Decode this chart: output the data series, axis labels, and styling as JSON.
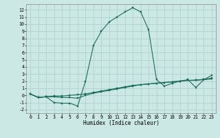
{
  "xlabel": "Humidex (Indice chaleur)",
  "bg_color": "#cce8e4",
  "grid_color": "#aacfcb",
  "line_color": "#1a6b5a",
  "xlim": [
    -0.5,
    23.5
  ],
  "ylim": [
    -2.5,
    12.8
  ],
  "xtick_vals": [
    0,
    1,
    2,
    3,
    4,
    5,
    6,
    7,
    8,
    9,
    10,
    11,
    12,
    13,
    14,
    15,
    16,
    17,
    18,
    19,
    20,
    21,
    22,
    23
  ],
  "xtick_labels": [
    "0",
    "1",
    "2",
    "3",
    "4",
    "5",
    "6",
    "7",
    "8",
    "9",
    "10",
    "11",
    "12",
    "13",
    "14",
    "15",
    "16",
    "17",
    "18",
    "19",
    "20",
    "21",
    "22",
    "23"
  ],
  "ytick_vals": [
    -2,
    -1,
    0,
    1,
    2,
    3,
    4,
    5,
    6,
    7,
    8,
    9,
    10,
    11,
    12
  ],
  "ytick_labels": [
    "-2",
    "-1",
    "0",
    "1",
    "2",
    "3",
    "4",
    "5",
    "6",
    "7",
    "8",
    "9",
    "10",
    "11",
    "12"
  ],
  "line1_x": [
    0,
    1,
    2,
    3,
    4,
    5,
    6,
    7,
    8,
    9,
    10,
    11,
    12,
    13,
    14,
    15,
    16,
    17,
    18,
    19,
    20,
    21,
    22,
    23
  ],
  "line1_y": [
    0.2,
    -0.3,
    -0.2,
    -1.0,
    -1.1,
    -1.1,
    -1.5,
    2.0,
    7.0,
    9.0,
    10.3,
    11.0,
    11.7,
    12.3,
    11.7,
    9.2,
    2.2,
    1.3,
    1.7,
    2.0,
    2.2,
    1.1,
    2.2,
    2.8
  ],
  "line2_x": [
    0,
    1,
    2,
    3,
    4,
    5,
    6,
    7,
    8,
    9,
    10,
    11,
    12,
    13,
    14,
    15,
    16,
    17,
    18,
    19,
    20,
    21,
    22,
    23
  ],
  "line2_y": [
    0.2,
    -0.3,
    -0.2,
    -0.2,
    -0.3,
    -0.3,
    -0.4,
    0.0,
    0.3,
    0.5,
    0.7,
    0.9,
    1.1,
    1.3,
    1.5,
    1.6,
    1.7,
    1.8,
    1.9,
    2.0,
    2.1,
    2.1,
    2.2,
    2.3
  ],
  "line3_x": [
    0,
    1,
    2,
    3,
    4,
    5,
    6,
    7,
    8,
    9,
    10,
    11,
    12,
    13,
    14,
    15,
    16,
    17,
    18,
    19,
    20,
    21,
    22,
    23
  ],
  "line3_y": [
    0.2,
    -0.3,
    -0.2,
    -0.1,
    -0.1,
    0.0,
    0.1,
    0.2,
    0.4,
    0.6,
    0.8,
    1.0,
    1.2,
    1.4,
    1.5,
    1.6,
    1.7,
    1.8,
    1.9,
    2.0,
    2.1,
    2.15,
    2.25,
    2.4
  ],
  "lw": 0.8,
  "ms": 1.8,
  "xlabel_fontsize": 5.5,
  "tick_fontsize": 4.8
}
